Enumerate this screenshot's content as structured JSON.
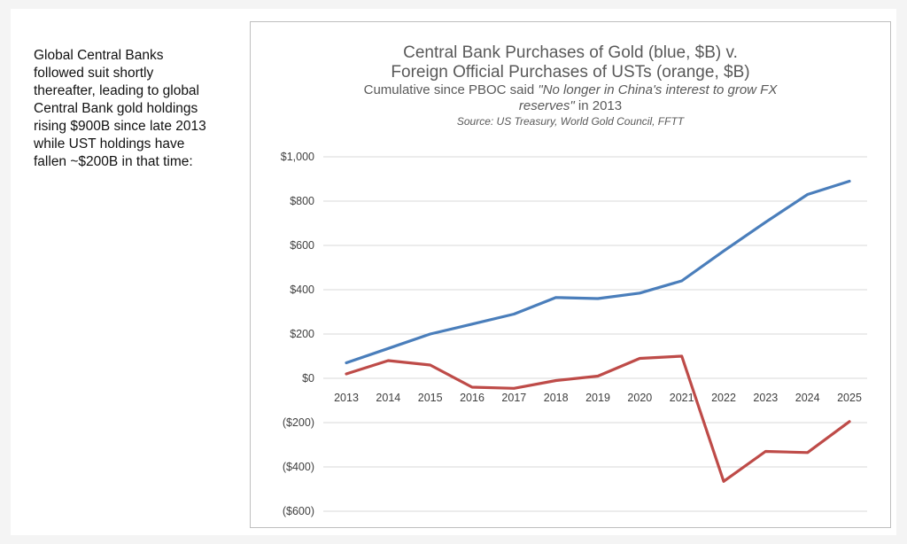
{
  "side_text": "Global Central Banks\nfollowed suit shortly\nthereafter, leading to global\nCentral Bank gold holdings\nrising $900B since late 2013\nwhile UST holdings have\nfallen ~$200B in that time:",
  "chart_data": {
    "type": "line",
    "title_line1": "Central Bank Purchases of Gold (blue, $B) v.",
    "title_line2": "Foreign Official Purchases of USTs (orange, $B)",
    "subtitle_prefix": "Cumulative since PBOC said ",
    "subtitle_quote": "\"No longer in China's interest to grow FX",
    "subtitle_quote2": "reserves\"",
    "subtitle_suffix": " in 2013",
    "source": "Source: US Treasury, World Gold Council, FFTT",
    "categories": [
      "2013",
      "2014",
      "2015",
      "2016",
      "2017",
      "2018",
      "2019",
      "2020",
      "2021",
      "2022",
      "2023",
      "2024",
      "2025"
    ],
    "y_ticks": [
      1000,
      800,
      600,
      400,
      200,
      0,
      -200,
      -400,
      -600
    ],
    "y_tick_labels": [
      "$1,000",
      "$800",
      "$600",
      "$400",
      "$200",
      "$0",
      "($200)",
      "($400)",
      "($600)"
    ],
    "ylim": [
      -600,
      1000
    ],
    "series": [
      {
        "name": "Central Bank Gold Purchases",
        "color": "#4a7ebb",
        "values": [
          70,
          135,
          200,
          245,
          290,
          365,
          360,
          385,
          440,
          575,
          705,
          830,
          890
        ]
      },
      {
        "name": "Foreign Official UST Purchases",
        "color": "#be4b48",
        "values": [
          20,
          80,
          60,
          -40,
          -45,
          -10,
          10,
          90,
          100,
          -465,
          -330,
          -335,
          -195
        ]
      }
    ]
  }
}
